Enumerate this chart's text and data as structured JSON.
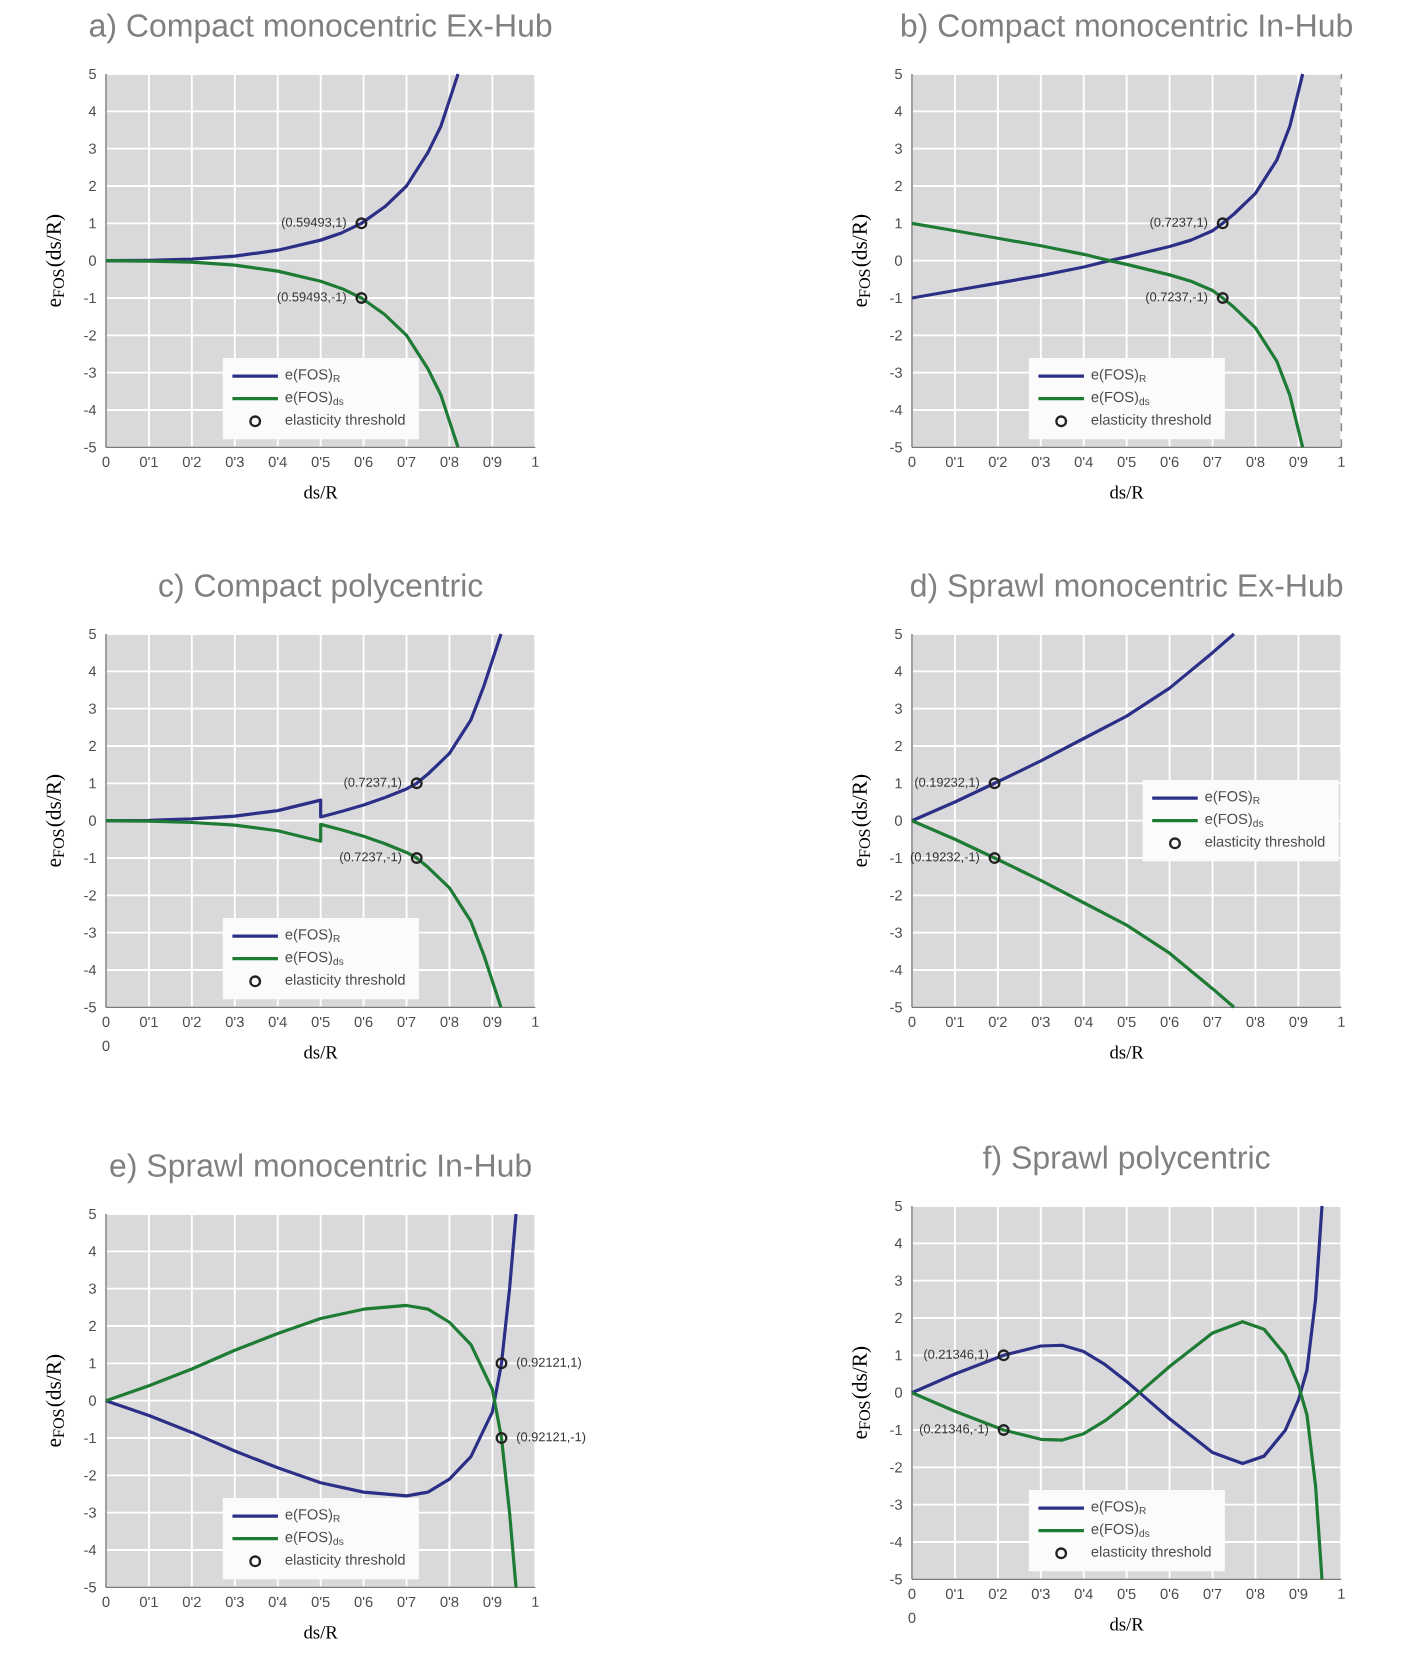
{
  "chart_data": [
    {
      "type": "line",
      "title": "a) Compact monocentric Ex-Hub",
      "xlabel": "ds/R",
      "ylabel": "e$_{FOS}$(ds/R)",
      "xlim": [
        0,
        1
      ],
      "ylim": [
        -5,
        5
      ],
      "xticks": [
        0,
        {
          "value": 0.1,
          "label": "0'1"
        },
        {
          "value": 0.2,
          "label": "0'2"
        },
        {
          "value": 0.3,
          "label": "0'3"
        },
        {
          "value": 0.4,
          "label": "0'4"
        },
        {
          "value": 0.5,
          "label": "0'5"
        },
        {
          "value": 0.6,
          "label": "0'6"
        },
        {
          "value": 0.7,
          "label": "0'7"
        },
        {
          "value": 0.8,
          "label": "0'8"
        },
        {
          "value": 0.9,
          "label": "0'9"
        },
        1
      ],
      "yticks": [
        -5,
        -4,
        -3,
        -2,
        -1,
        0,
        1,
        2,
        3,
        4,
        5
      ],
      "grid": true,
      "legend": "bottom right",
      "series": [
        {
          "name": "e(FOS)$_{R}$",
          "color": "#2b2f86",
          "x": [
            0,
            0.1,
            0.2,
            0.3,
            0.4,
            0.5,
            0.55,
            0.59493,
            0.65,
            0.7,
            0.75,
            0.78,
            0.8,
            0.82
          ],
          "values": [
            0,
            0.01,
            0.04,
            0.12,
            0.28,
            0.55,
            0.75,
            1,
            1.45,
            2.0,
            2.9,
            3.6,
            4.3,
            5
          ]
        },
        {
          "name": "e(FOS)$_{ds}$",
          "color": "#1e7b34",
          "x": [
            0,
            0.1,
            0.2,
            0.3,
            0.4,
            0.5,
            0.55,
            0.59493,
            0.65,
            0.7,
            0.75,
            0.78,
            0.8,
            0.82
          ],
          "values": [
            0,
            -0.01,
            -0.04,
            -0.12,
            -0.28,
            -0.55,
            -0.75,
            -1,
            -1.45,
            -2.0,
            -2.9,
            -3.6,
            -4.3,
            -5
          ]
        },
        {
          "name": "elasticity threshold",
          "type": "scatter",
          "marker": "circle",
          "color": "#222222",
          "x": [
            0.59493,
            0.59493
          ],
          "values": [
            1,
            -1
          ],
          "value_labels": [
            "(0.59493,1)",
            "(0.59493,-1)"
          ]
        }
      ]
    },
    {
      "type": "line",
      "title": "b) Compact monocentric In-Hub",
      "xlabel": "ds/R",
      "ylabel": "e$_{FOS}$(ds/R)",
      "xlim": [
        0,
        1
      ],
      "ylim": [
        -5,
        5
      ],
      "xticks": [
        0,
        {
          "value": 0.1,
          "label": "0'1"
        },
        {
          "value": 0.2,
          "label": "0'2"
        },
        {
          "value": 0.3,
          "label": "0'3"
        },
        {
          "value": 0.4,
          "label": "0'4"
        },
        {
          "value": 0.5,
          "label": "0'5"
        },
        {
          "value": 0.6,
          "label": "0'6"
        },
        {
          "value": 0.7,
          "label": "0'7"
        },
        {
          "value": 0.8,
          "label": "0'8"
        },
        {
          "value": 0.9,
          "label": "0'9"
        },
        1
      ],
      "yticks": [
        -5,
        -4,
        -3,
        -2,
        -1,
        0,
        1,
        2,
        3,
        4,
        5
      ],
      "grid": true,
      "legend": "bottom right",
      "ref_lines": [
        {
          "axis": "x",
          "value": 1,
          "color": "#888888",
          "line_style": "dashed"
        }
      ],
      "series": [
        {
          "name": "e(FOS)$_{R}$",
          "color": "#2b2f86",
          "x": [
            0,
            0.1,
            0.2,
            0.3,
            0.4,
            0.46,
            0.5,
            0.6,
            0.65,
            0.7,
            0.7237,
            0.75,
            0.8,
            0.85,
            0.88,
            0.91
          ],
          "values": [
            -1,
            -0.8,
            -0.6,
            -0.4,
            -0.17,
            0,
            0.1,
            0.38,
            0.55,
            0.8,
            1,
            1.25,
            1.8,
            2.7,
            3.6,
            5
          ]
        },
        {
          "name": "e(FOS)$_{ds}$",
          "color": "#1e7b34",
          "x": [
            0,
            0.1,
            0.2,
            0.3,
            0.4,
            0.46,
            0.5,
            0.6,
            0.65,
            0.7,
            0.7237,
            0.75,
            0.8,
            0.85,
            0.88,
            0.91
          ],
          "values": [
            1,
            0.8,
            0.6,
            0.4,
            0.17,
            0,
            -0.1,
            -0.38,
            -0.55,
            -0.8,
            -1,
            -1.25,
            -1.8,
            -2.7,
            -3.6,
            -5
          ]
        },
        {
          "name": "elasticity threshold",
          "type": "scatter",
          "marker": "circle",
          "color": "#222222",
          "x": [
            0.7237,
            0.7237
          ],
          "values": [
            1,
            -1
          ],
          "value_labels": [
            "(0.7237,1)",
            "(0.7237,-1)"
          ]
        }
      ]
    },
    {
      "type": "line",
      "title": "c) Compact polycentric",
      "xlabel": "ds/R",
      "ylabel": "e$_{FOS}$(ds/R)",
      "xlim": [
        0,
        1
      ],
      "ylim": [
        -5,
        5
      ],
      "annotations": [
        "0"
      ],
      "xticks": [
        0,
        {
          "value": 0.1,
          "label": "0'1"
        },
        {
          "value": 0.2,
          "label": "0'2"
        },
        {
          "value": 0.3,
          "label": "0'3"
        },
        {
          "value": 0.4,
          "label": "0'4"
        },
        {
          "value": 0.5,
          "label": "0'5"
        },
        {
          "value": 0.6,
          "label": "0'6"
        },
        {
          "value": 0.7,
          "label": "0'7"
        },
        {
          "value": 0.8,
          "label": "0'8"
        },
        {
          "value": 0.9,
          "label": "0'9"
        },
        1
      ],
      "yticks": [
        -5,
        -4,
        -3,
        -2,
        -1,
        0,
        1,
        2,
        3,
        4,
        5
      ],
      "grid": true,
      "legend": "bottom right",
      "series": [
        {
          "name": "e(FOS)$_{R}$",
          "color": "#2b2f86",
          "x": [
            0,
            0.1,
            0.2,
            0.3,
            0.4,
            0.5,
            0.5,
            0.55,
            0.6,
            0.65,
            0.7,
            0.7237,
            0.75,
            0.8,
            0.85,
            0.88,
            0.92
          ],
          "values": [
            0,
            0.01,
            0.05,
            0.12,
            0.27,
            0.55,
            0.1,
            0.25,
            0.42,
            0.62,
            0.85,
            1,
            1.25,
            1.8,
            2.7,
            3.6,
            5
          ]
        },
        {
          "name": "e(FOS)$_{ds}$",
          "color": "#1e7b34",
          "x": [
            0,
            0.1,
            0.2,
            0.3,
            0.4,
            0.5,
            0.5,
            0.55,
            0.6,
            0.65,
            0.7,
            0.7237,
            0.75,
            0.8,
            0.85,
            0.88,
            0.92
          ],
          "values": [
            0,
            -0.01,
            -0.05,
            -0.12,
            -0.27,
            -0.55,
            -0.1,
            -0.25,
            -0.42,
            -0.62,
            -0.85,
            -1,
            -1.25,
            -1.8,
            -2.7,
            -3.6,
            -5
          ]
        },
        {
          "name": "elasticity threshold",
          "type": "scatter",
          "marker": "circle",
          "color": "#222222",
          "x": [
            0.7237,
            0.7237
          ],
          "values": [
            1,
            -1
          ],
          "value_labels": [
            "(0.7237,1)",
            "(0.7237,-1)"
          ]
        }
      ]
    },
    {
      "type": "line",
      "title": "d) Sprawl monocentric Ex-Hub",
      "xlabel": "ds/R",
      "ylabel": "e$_{FOS}$(ds/R)",
      "xlim": [
        0,
        1
      ],
      "ylim": [
        -5,
        5
      ],
      "xticks": [
        0,
        {
          "value": 0.1,
          "label": "0'1"
        },
        {
          "value": 0.2,
          "label": "0'2"
        },
        {
          "value": 0.3,
          "label": "0'3"
        },
        {
          "value": 0.4,
          "label": "0'4"
        },
        {
          "value": 0.5,
          "label": "0'5"
        },
        {
          "value": 0.6,
          "label": "0'6"
        },
        {
          "value": 0.7,
          "label": "0'7"
        },
        {
          "value": 0.8,
          "label": "0'8"
        },
        {
          "value": 0.9,
          "label": "0'9"
        },
        1
      ],
      "yticks": [
        -5,
        -4,
        -3,
        -2,
        -1,
        0,
        1,
        2,
        3,
        4,
        5
      ],
      "grid": true,
      "legend": "right",
      "series": [
        {
          "name": "e(FOS)$_{R}$",
          "color": "#2b2f86",
          "x": [
            0,
            0.1,
            0.19232,
            0.3,
            0.4,
            0.5,
            0.6,
            0.7,
            0.75
          ],
          "values": [
            0,
            0.5,
            1,
            1.6,
            2.2,
            2.8,
            3.55,
            4.5,
            5
          ]
        },
        {
          "name": "e(FOS)$_{ds}$",
          "color": "#1e7b34",
          "x": [
            0,
            0.1,
            0.19232,
            0.3,
            0.4,
            0.5,
            0.6,
            0.7,
            0.75
          ],
          "values": [
            0,
            -0.5,
            -1,
            -1.6,
            -2.2,
            -2.8,
            -3.55,
            -4.5,
            -5
          ]
        },
        {
          "name": "elasticity threshold",
          "type": "scatter",
          "marker": "circle",
          "color": "#222222",
          "x": [
            0.19232,
            0.19232
          ],
          "values": [
            1,
            -1
          ],
          "value_labels": [
            "(0.19232,1)",
            "(0.19232,-1)"
          ]
        }
      ]
    },
    {
      "type": "line",
      "title": "e) Sprawl monocentric In-Hub",
      "xlabel": "ds/R",
      "ylabel": "e$_{FOS}$(ds/R)",
      "xlim": [
        0,
        1
      ],
      "ylim": [
        -5,
        5
      ],
      "xticks": [
        0,
        {
          "value": 0.1,
          "label": "0'1"
        },
        {
          "value": 0.2,
          "label": "0'2"
        },
        {
          "value": 0.3,
          "label": "0'3"
        },
        {
          "value": 0.4,
          "label": "0'4"
        },
        {
          "value": 0.5,
          "label": "0'5"
        },
        {
          "value": 0.6,
          "label": "0'6"
        },
        {
          "value": 0.7,
          "label": "0'7"
        },
        {
          "value": 0.8,
          "label": "0'8"
        },
        {
          "value": 0.9,
          "label": "0'9"
        },
        1
      ],
      "yticks": [
        -5,
        -4,
        -3,
        -2,
        -1,
        0,
        1,
        2,
        3,
        4,
        5
      ],
      "grid": true,
      "legend": "bottom right",
      "series": [
        {
          "name": "e(FOS)$_{R}$",
          "color": "#2b2f86",
          "x": [
            0,
            0.1,
            0.2,
            0.3,
            0.4,
            0.5,
            0.6,
            0.7,
            0.75,
            0.8,
            0.85,
            0.9,
            0.92121,
            0.94,
            0.955
          ],
          "values": [
            0,
            -0.4,
            -0.85,
            -1.35,
            -1.8,
            -2.2,
            -2.45,
            -2.55,
            -2.45,
            -2.1,
            -1.5,
            -0.3,
            1,
            3,
            5
          ]
        },
        {
          "name": "e(FOS)$_{ds}$",
          "color": "#1e7b34",
          "x": [
            0,
            0.1,
            0.2,
            0.3,
            0.4,
            0.5,
            0.6,
            0.7,
            0.75,
            0.8,
            0.85,
            0.9,
            0.92121,
            0.94,
            0.955
          ],
          "values": [
            0,
            0.4,
            0.85,
            1.35,
            1.8,
            2.2,
            2.45,
            2.55,
            2.45,
            2.1,
            1.5,
            0.3,
            -1,
            -3,
            -5
          ]
        },
        {
          "name": "elasticity threshold",
          "type": "scatter",
          "marker": "circle",
          "color": "#222222",
          "x": [
            0.92121,
            0.92121
          ],
          "values": [
            1,
            -1
          ],
          "value_labels": [
            "(0.92121,1)",
            "(0.92121,-1)"
          ]
        }
      ]
    },
    {
      "type": "line",
      "title": "f) Sprawl polycentric",
      "xlabel": "ds/R",
      "ylabel": "e$_{FOS}$(ds/R)",
      "xlim": [
        0,
        1
      ],
      "ylim": [
        -5,
        5
      ],
      "annotations": [
        "0"
      ],
      "xticks": [
        0,
        {
          "value": 0.1,
          "label": "0'1"
        },
        {
          "value": 0.2,
          "label": "0'2"
        },
        {
          "value": 0.3,
          "label": "0'3"
        },
        {
          "value": 0.4,
          "label": "0'4"
        },
        {
          "value": 0.5,
          "label": "0'5"
        },
        {
          "value": 0.6,
          "label": "0'6"
        },
        {
          "value": 0.7,
          "label": "0'7"
        },
        {
          "value": 0.8,
          "label": "0'8"
        },
        {
          "value": 0.9,
          "label": "0'9"
        },
        1
      ],
      "yticks": [
        -5,
        -4,
        -3,
        -2,
        -1,
        0,
        1,
        2,
        3,
        4,
        5
      ],
      "grid": true,
      "legend": "bottom right",
      "series": [
        {
          "name": "e(FOS)$_{R}$",
          "color": "#2b2f86",
          "x": [
            0,
            0.1,
            0.21346,
            0.3,
            0.35,
            0.4,
            0.45,
            0.5,
            0.53,
            0.6,
            0.7,
            0.77,
            0.82,
            0.87,
            0.9,
            0.92,
            0.94,
            0.955
          ],
          "values": [
            0,
            0.5,
            1,
            1.25,
            1.27,
            1.1,
            0.75,
            0.3,
            0,
            -0.7,
            -1.6,
            -1.9,
            -1.7,
            -1.0,
            -0.2,
            0.6,
            2.5,
            5
          ]
        },
        {
          "name": "e(FOS)$_{ds}$",
          "color": "#1e7b34",
          "x": [
            0,
            0.1,
            0.21346,
            0.3,
            0.35,
            0.4,
            0.45,
            0.5,
            0.53,
            0.6,
            0.7,
            0.77,
            0.82,
            0.87,
            0.9,
            0.92,
            0.94,
            0.955
          ],
          "values": [
            0,
            -0.5,
            -1,
            -1.25,
            -1.27,
            -1.1,
            -0.75,
            -0.3,
            0,
            0.7,
            1.6,
            1.9,
            1.7,
            1.0,
            0.2,
            -0.6,
            -2.5,
            -5
          ]
        },
        {
          "name": "elasticity threshold",
          "type": "scatter",
          "marker": "circle",
          "color": "#222222",
          "x": [
            0.21346,
            0.21346
          ],
          "values": [
            1,
            -1
          ],
          "value_labels": [
            "(0.21346,1)",
            "(0.21346,-1)"
          ]
        }
      ]
    }
  ]
}
